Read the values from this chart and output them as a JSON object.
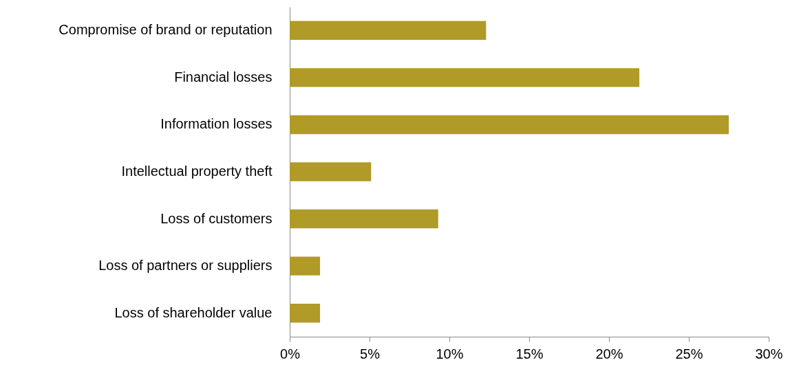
{
  "chart_data": {
    "type": "bar",
    "orientation": "horizontal",
    "categories": [
      "Compromise of brand or reputation",
      "Financial losses",
      "Information losses",
      "Intellectual property theft",
      "Loss of customers",
      "Loss of partners or suppliers",
      "Loss of shareholder value"
    ],
    "values": [
      12.3,
      21.9,
      27.5,
      5.1,
      9.3,
      1.9,
      1.9
    ],
    "color": "#b09a28",
    "xlim": [
      0,
      30
    ],
    "xticks": [
      {
        "value": 0,
        "label": "0%"
      },
      {
        "value": 5,
        "label": "5%"
      },
      {
        "value": 10,
        "label": "10%"
      },
      {
        "value": 15,
        "label": "15%"
      },
      {
        "value": 20,
        "label": "20%"
      },
      {
        "value": 25,
        "label": "25%"
      },
      {
        "value": 30,
        "label": "30%"
      }
    ],
    "grid": false
  }
}
